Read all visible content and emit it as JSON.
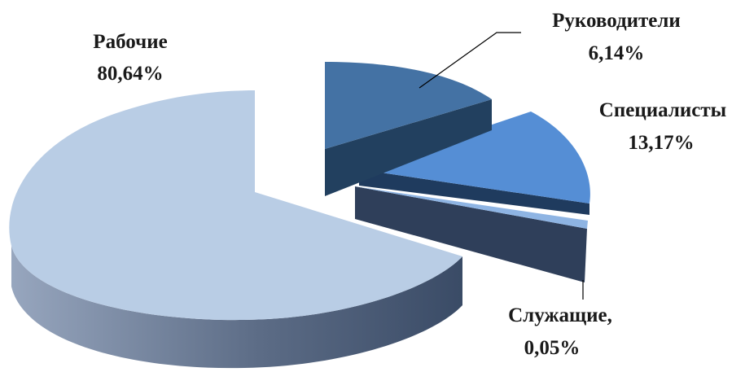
{
  "chart_data": {
    "type": "pie",
    "style": "3d-exploded",
    "title": "",
    "slices": [
      {
        "label": "Рабочие",
        "value_label": "80,64%",
        "value": 80.64,
        "color": "#B9CDE5"
      },
      {
        "label": "Руководители",
        "value_label": "6,14%",
        "value": 6.14,
        "color": "#4472A4"
      },
      {
        "label": "Специалисты",
        "value_label": "13,17%",
        "value": 13.17,
        "color": "#558ED5"
      },
      {
        "label": "Служащие,",
        "value_label": "0,05%",
        "value": 0.05,
        "color": "#8EB4E3"
      }
    ],
    "legend": "none"
  }
}
